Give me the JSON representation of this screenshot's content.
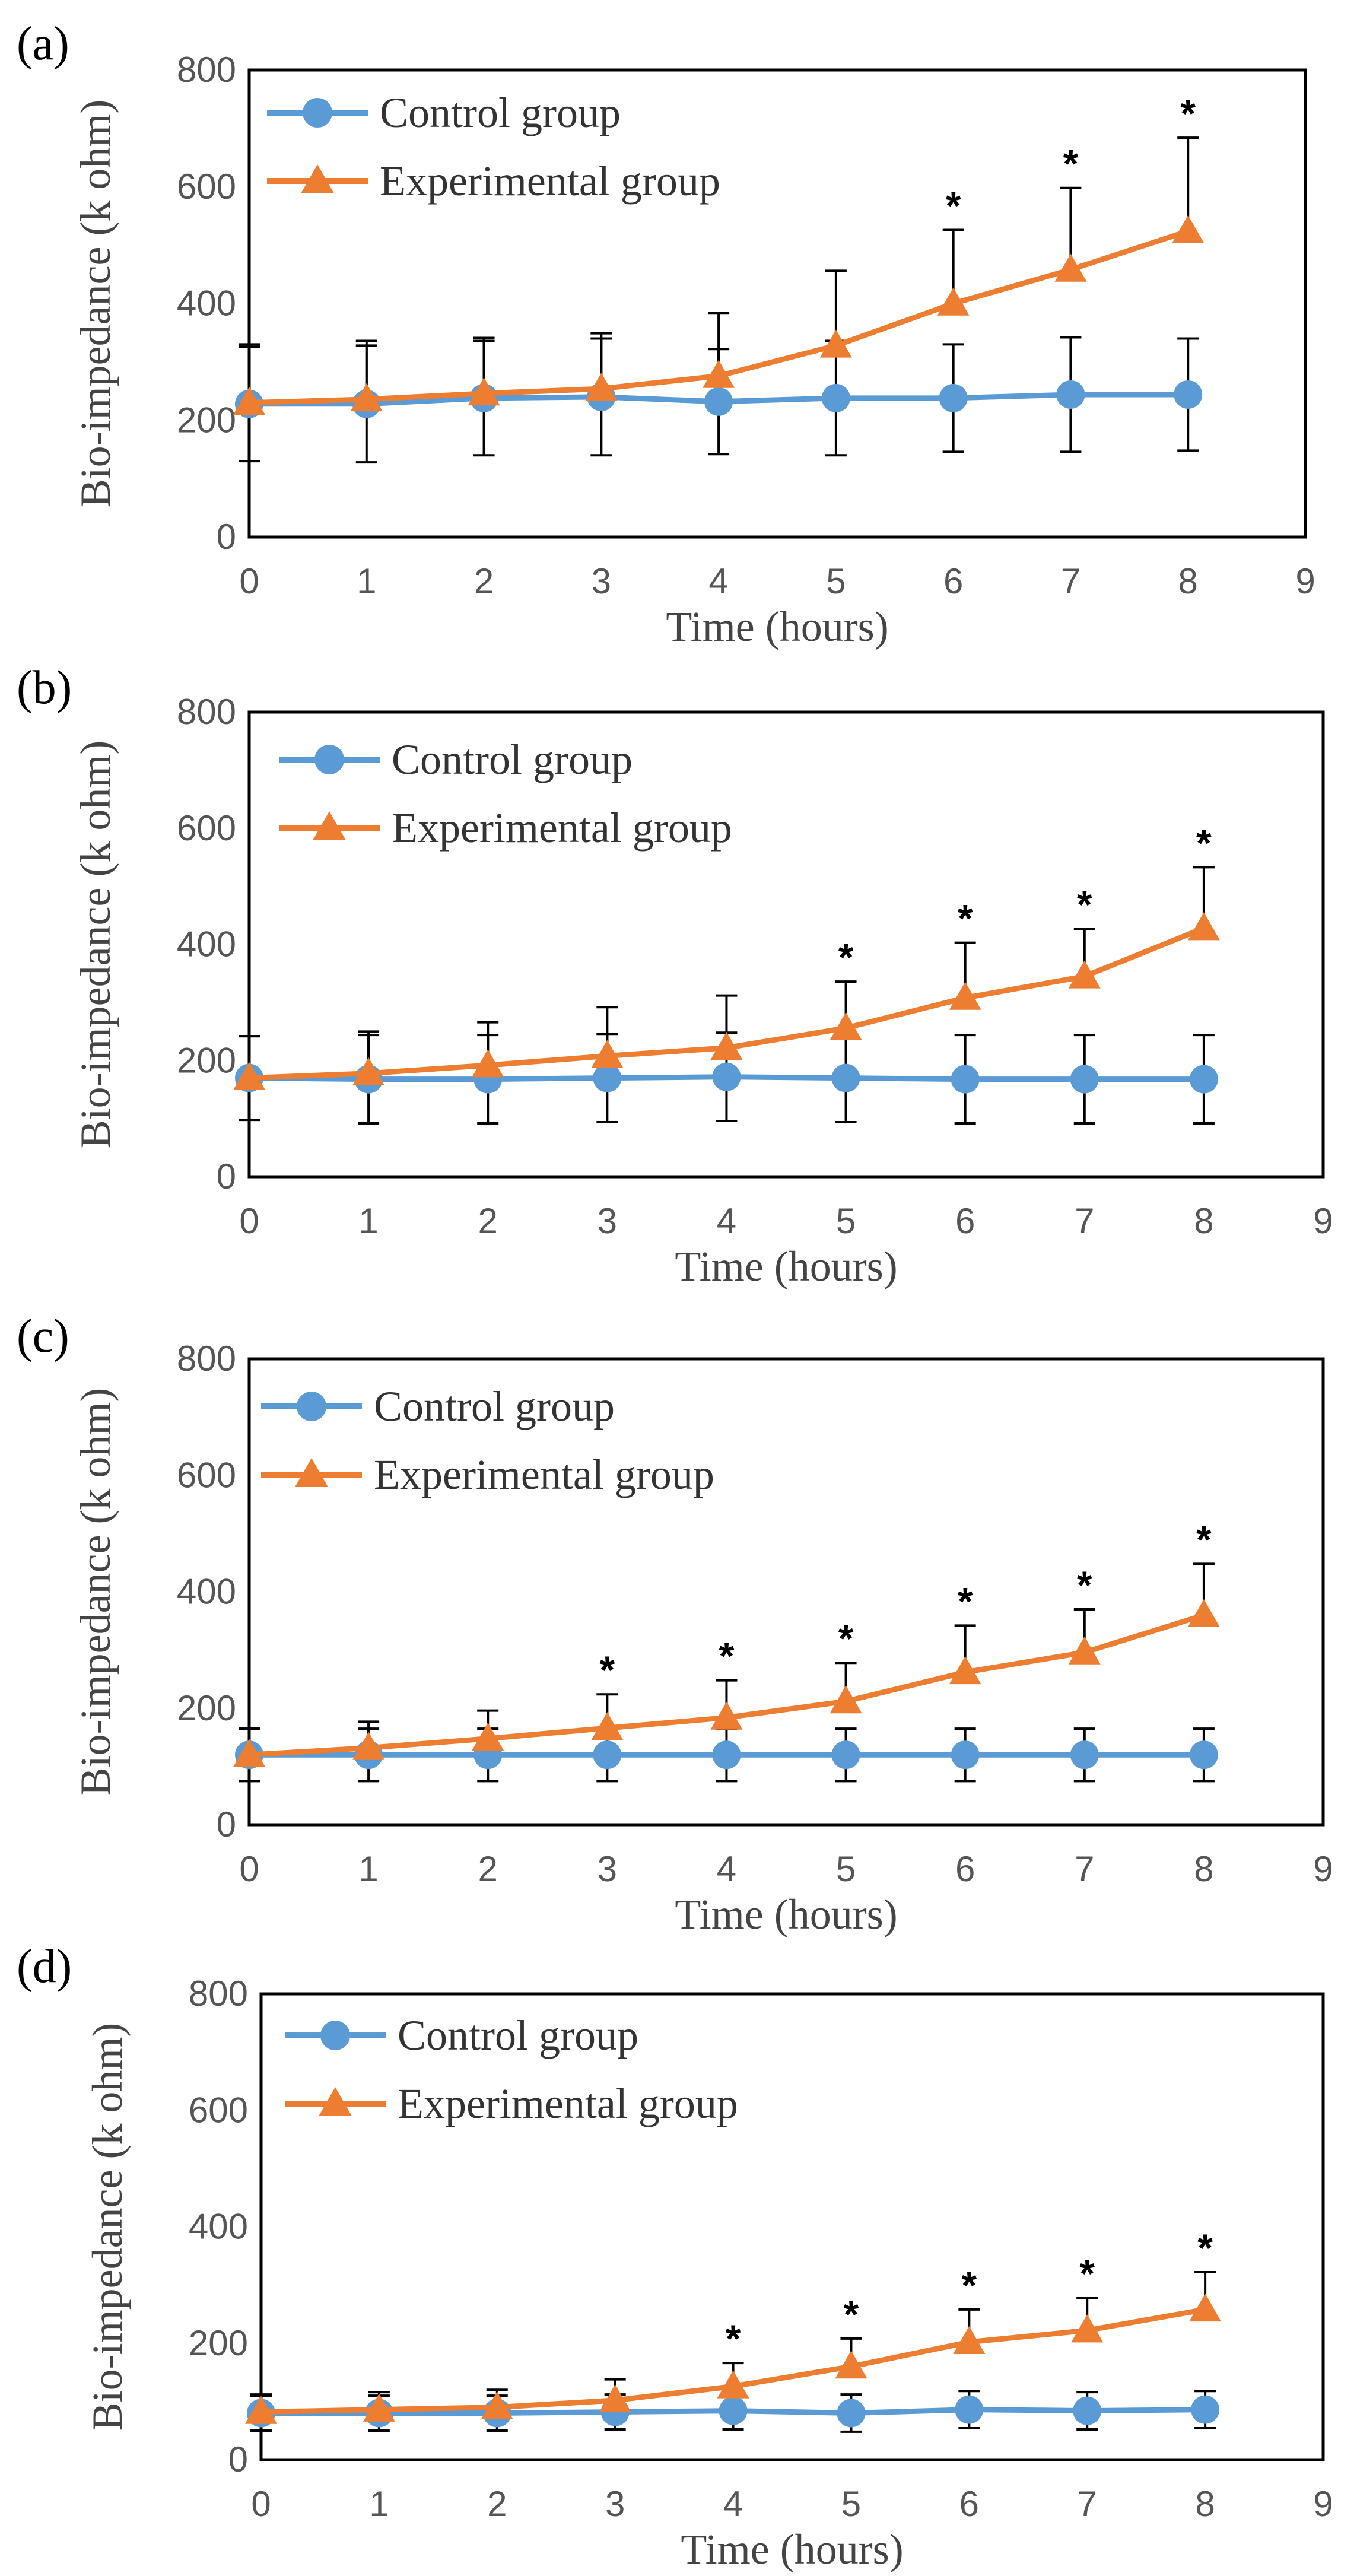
{
  "figure": {
    "colors": {
      "control": "#5B9BD5",
      "experimental": "#ED7D31",
      "error_bar": "#000000",
      "frame": "#000000"
    }
  },
  "chart_data": [
    {
      "panel_label": "(a)",
      "type": "line",
      "xlabel": "Time (hours)",
      "ylabel": "Bio-impedance (k ohm)",
      "xlim": [
        0,
        9
      ],
      "ylim": [
        0,
        800
      ],
      "xticks": [
        "0",
        "1",
        "2",
        "3",
        "4",
        "5",
        "6",
        "7",
        "8",
        "9"
      ],
      "yticks": [
        "0",
        "200",
        "400",
        "600",
        "800"
      ],
      "legend_position": "top-left",
      "x": [
        0,
        1,
        2,
        3,
        4,
        5,
        6,
        7,
        8
      ],
      "series": [
        {
          "name": "Control group",
          "marker": "circle",
          "values": [
            228,
            228,
            238,
            240,
            232,
            238,
            238,
            244,
            244
          ],
          "errors": [
            98,
            100,
            98,
            100,
            90,
            98,
            92,
            98,
            96
          ]
        },
        {
          "name": "Experimental group",
          "marker": "triangle",
          "values": [
            230,
            236,
            246,
            254,
            276,
            328,
            400,
            458,
            524
          ],
          "errors": [
            100,
            100,
            95,
            95,
            108,
            128,
            126,
            140,
            160
          ]
        }
      ],
      "significance": [
        {
          "x": 6,
          "label": "*"
        },
        {
          "x": 7,
          "label": "*"
        },
        {
          "x": 8,
          "label": "*"
        }
      ]
    },
    {
      "panel_label": "(b)",
      "type": "line",
      "xlabel": "Time (hours)",
      "ylabel": "Bio-impedance (k ohm)",
      "xlim": [
        0,
        9
      ],
      "ylim": [
        0,
        800
      ],
      "xticks": [
        "0",
        "1",
        "2",
        "3",
        "4",
        "5",
        "6",
        "7",
        "8",
        "9"
      ],
      "yticks": [
        "0",
        "200",
        "400",
        "600",
        "800"
      ],
      "legend_position": "top-left",
      "x": [
        0,
        1,
        2,
        3,
        4,
        5,
        6,
        7,
        8
      ],
      "series": [
        {
          "name": "Control group",
          "marker": "circle",
          "values": [
            170,
            168,
            168,
            170,
            172,
            170,
            168,
            168,
            168
          ],
          "errors": [
            72,
            76,
            76,
            76,
            76,
            76,
            76,
            76,
            76
          ]
        },
        {
          "name": "Experimental group",
          "marker": "triangle",
          "values": [
            170,
            178,
            192,
            208,
            222,
            256,
            308,
            345,
            428
          ],
          "errors": [
            72,
            72,
            74,
            84,
            90,
            80,
            95,
            82,
            105
          ]
        }
      ],
      "significance": [
        {
          "x": 5,
          "label": "*"
        },
        {
          "x": 6,
          "label": "*"
        },
        {
          "x": 7,
          "label": "*"
        },
        {
          "x": 8,
          "label": "*"
        }
      ]
    },
    {
      "panel_label": "(c)",
      "type": "line",
      "xlabel": "Time (hours)",
      "ylabel": "Bio-impedance (k ohm)",
      "xlim": [
        0,
        9
      ],
      "ylim": [
        0,
        800
      ],
      "xticks": [
        "0",
        "1",
        "2",
        "3",
        "4",
        "5",
        "6",
        "7",
        "8",
        "9"
      ],
      "yticks": [
        "0",
        "200",
        "400",
        "600",
        "800"
      ],
      "legend_position": "top-left",
      "x": [
        0,
        1,
        2,
        3,
        4,
        5,
        6,
        7,
        8
      ],
      "series": [
        {
          "name": "Control group",
          "marker": "circle",
          "values": [
            120,
            120,
            120,
            120,
            120,
            120,
            120,
            120,
            120
          ],
          "errors": [
            45,
            45,
            45,
            45,
            45,
            45,
            45,
            45,
            45
          ]
        },
        {
          "name": "Experimental group",
          "marker": "triangle",
          "values": [
            120,
            132,
            148,
            166,
            184,
            212,
            262,
            296,
            360
          ],
          "errors": [
            45,
            45,
            48,
            58,
            64,
            66,
            80,
            74,
            88
          ]
        }
      ],
      "significance": [
        {
          "x": 3,
          "label": "*"
        },
        {
          "x": 4,
          "label": "*"
        },
        {
          "x": 5,
          "label": "*"
        },
        {
          "x": 6,
          "label": "*"
        },
        {
          "x": 7,
          "label": "*"
        },
        {
          "x": 8,
          "label": "*"
        }
      ]
    },
    {
      "panel_label": "(d)",
      "type": "line",
      "xlabel": "Time (hours)",
      "ylabel": "Bio-impedance (k ohm)",
      "xlim": [
        0,
        9
      ],
      "ylim": [
        0,
        800
      ],
      "xticks": [
        "0",
        "1",
        "2",
        "3",
        "4",
        "5",
        "6",
        "7",
        "8",
        "9"
      ],
      "yticks": [
        "0",
        "200",
        "400",
        "600",
        "800"
      ],
      "legend_position": "top-left",
      "x": [
        0,
        1,
        2,
        3,
        4,
        5,
        6,
        7,
        8
      ],
      "series": [
        {
          "name": "Control group",
          "marker": "circle",
          "values": [
            80,
            80,
            80,
            82,
            84,
            80,
            86,
            84,
            86
          ],
          "errors": [
            30,
            30,
            30,
            30,
            32,
            32,
            32,
            32,
            32
          ]
        },
        {
          "name": "Experimental group",
          "marker": "triangle",
          "values": [
            82,
            86,
            90,
            102,
            126,
            160,
            202,
            222,
            258
          ],
          "errors": [
            30,
            30,
            30,
            36,
            40,
            48,
            56,
            56,
            64
          ]
        }
      ],
      "significance": [
        {
          "x": 4,
          "label": "*"
        },
        {
          "x": 5,
          "label": "*"
        },
        {
          "x": 6,
          "label": "*"
        },
        {
          "x": 7,
          "label": "*"
        },
        {
          "x": 8,
          "label": "*"
        }
      ]
    }
  ]
}
